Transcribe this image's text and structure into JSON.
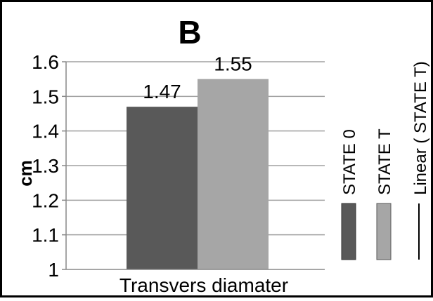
{
  "chart_data": {
    "type": "bar",
    "panel_label": "B",
    "categories": [
      "Transvers diamater"
    ],
    "series": [
      {
        "name": "STATE 0",
        "values": [
          1.47
        ],
        "color": "#595959"
      },
      {
        "name": "STATE T",
        "values": [
          1.55
        ],
        "color": "#a6a6a6"
      }
    ],
    "trendline_legend": "Linear ( STATE T)",
    "data_labels": [
      "1.47",
      "1.55"
    ],
    "ylabel": "cm",
    "ylim": [
      1,
      1.6
    ],
    "yticks": [
      "1",
      "1.1",
      "1.2",
      "1.3",
      "1.4",
      "1.5",
      "1.6"
    ],
    "grid": true,
    "legend_position": "right"
  }
}
